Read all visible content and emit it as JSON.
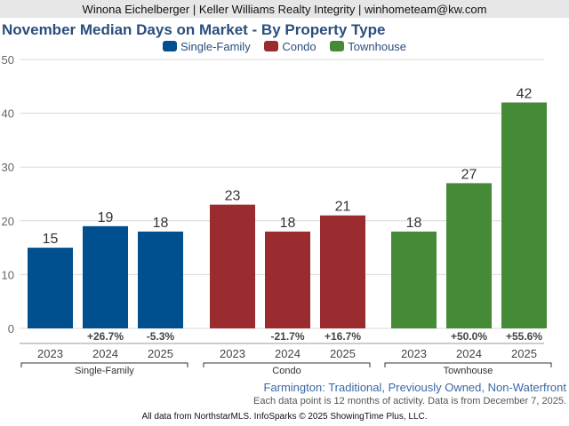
{
  "header": {
    "text": "Winona Eichelberger | Keller Williams Realty Integrity | winhometeam@kw.com"
  },
  "subtitle": "Farmington: Traditional, Previously Owned, Non-Waterfront",
  "note": "Each data point is 12 months of activity. Data is from December 7, 2025.",
  "footer": "All data from NorthstarMLS. InfoSparks © 2025 ShowingTime Plus, LLC.",
  "chart_data": {
    "type": "bar",
    "title": "November Median Days on Market - By Property Type",
    "xlabel": "",
    "ylabel": "",
    "ylim": [
      0,
      50
    ],
    "yticks": [
      0,
      10,
      20,
      30,
      40,
      50
    ],
    "grid": true,
    "legend_position": "top-center",
    "categories": [
      "2023",
      "2024",
      "2025"
    ],
    "series": [
      {
        "name": "Single-Family",
        "color": "#004f8e",
        "values": [
          15,
          19,
          18
        ],
        "changes": [
          "",
          "+26.7%",
          "-5.3%"
        ]
      },
      {
        "name": "Condo",
        "color": "#9a2b2f",
        "values": [
          23,
          18,
          21
        ],
        "changes": [
          "",
          "-21.7%",
          "+16.7%"
        ]
      },
      {
        "name": "Townhouse",
        "color": "#458b37",
        "values": [
          18,
          27,
          42
        ],
        "changes": [
          "",
          "+50.0%",
          "+55.6%"
        ]
      }
    ]
  }
}
